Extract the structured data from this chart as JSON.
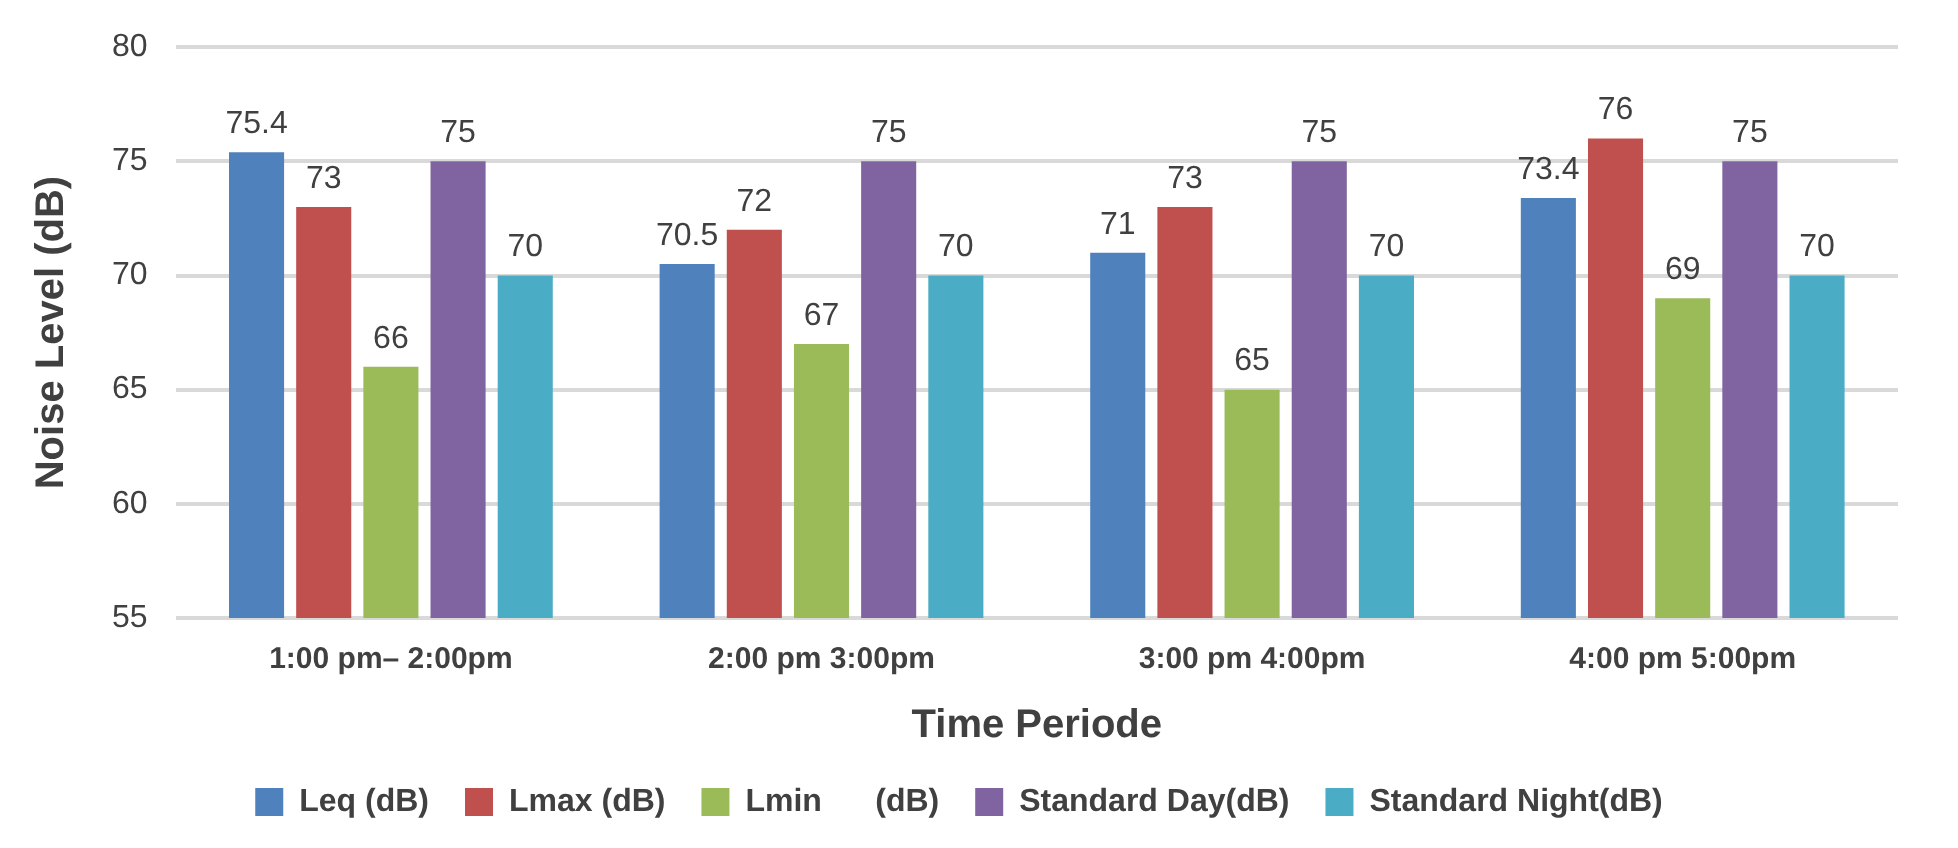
{
  "chart_data": {
    "type": "bar",
    "xlabel": "Time Periode",
    "ylabel": "Noise Level (dB)",
    "categories": [
      "1:00 pm– 2:00pm",
      "2:00 pm 3:00pm",
      "3:00 pm 4:00pm",
      "4:00 pm 5:00pm"
    ],
    "series": [
      {
        "name": "Leq (dB)",
        "color": "#4f81bd",
        "values": [
          75.4,
          70.5,
          71,
          73.4
        ]
      },
      {
        "name": "Lmax (dB)",
        "color": "#c0504d",
        "values": [
          73,
          72,
          73,
          76
        ]
      },
      {
        "name": "Lmin      (dB)",
        "color": "#9bbb59",
        "values": [
          66,
          67,
          65,
          69
        ]
      },
      {
        "name": "Standard Day(dB)",
        "color": "#8064a2",
        "values": [
          75,
          75,
          75,
          75
        ]
      },
      {
        "name": "Standard Night(dB)",
        "color": "#4bacc6",
        "values": [
          70,
          70,
          70,
          70
        ]
      }
    ],
    "ylim": [
      55,
      80
    ],
    "yticks": [
      55,
      60,
      65,
      70,
      75,
      80
    ],
    "grid": "y",
    "legend": "bottom",
    "data_labels": true
  }
}
